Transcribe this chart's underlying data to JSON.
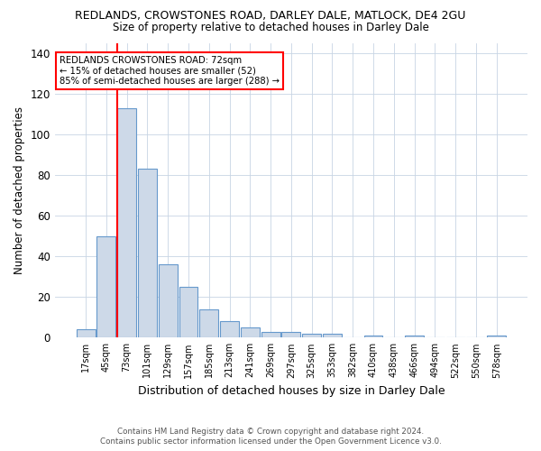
{
  "title": "REDLANDS, CROWSTONES ROAD, DARLEY DALE, MATLOCK, DE4 2GU",
  "subtitle": "Size of property relative to detached houses in Darley Dale",
  "xlabel": "Distribution of detached houses by size in Darley Dale",
  "ylabel": "Number of detached properties",
  "bar_labels": [
    "17sqm",
    "45sqm",
    "73sqm",
    "101sqm",
    "129sqm",
    "157sqm",
    "185sqm",
    "213sqm",
    "241sqm",
    "269sqm",
    "297sqm",
    "325sqm",
    "353sqm",
    "382sqm",
    "410sqm",
    "438sqm",
    "466sqm",
    "494sqm",
    "522sqm",
    "550sqm",
    "578sqm"
  ],
  "bar_values": [
    4,
    50,
    113,
    83,
    36,
    25,
    14,
    8,
    5,
    3,
    3,
    2,
    2,
    0,
    1,
    0,
    1,
    0,
    0,
    0,
    1
  ],
  "bar_color": "#cdd9e8",
  "bar_edge_color": "#6699cc",
  "red_line_index": 2,
  "ylim": [
    0,
    145
  ],
  "yticks": [
    0,
    20,
    40,
    60,
    80,
    100,
    120,
    140
  ],
  "annotation_title": "REDLANDS CROWSTONES ROAD: 72sqm",
  "annotation_line1": "← 15% of detached houses are smaller (52)",
  "annotation_line2": "85% of semi-detached houses are larger (288) →",
  "footer_line1": "Contains HM Land Registry data © Crown copyright and database right 2024.",
  "footer_line2": "Contains public sector information licensed under the Open Government Licence v3.0.",
  "background_color": "#ffffff",
  "grid_color": "#c8d4e4"
}
